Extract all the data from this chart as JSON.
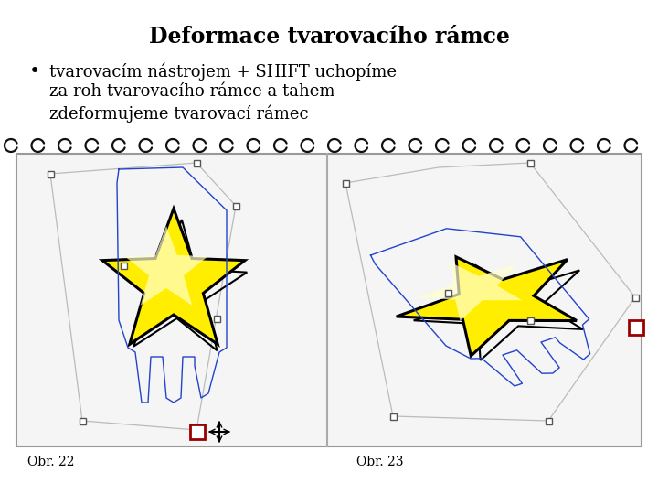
{
  "title": "Deformace tvarovacího rámce",
  "bullet_line1": "tvarovacím nástrojem + SHIFT uchopíme",
  "bullet_line2": "za roh tvarovacího rámce a tahem",
  "bullet_line3": "zdeformujeme tvarovací rámec",
  "label1": "Obr. 22",
  "label2": "Obr. 23",
  "bg_color": "#ffffff",
  "notebook_bg": "#f5f5f5",
  "spiral_color": "#111111",
  "gray_line": "#bbbbbb",
  "blue_outline": "#2244cc",
  "red_box": "#990000",
  "star_yellow": "#ffee00",
  "star_light": "#ffffaa",
  "black": "#000000",
  "divider": "#aaaaaa",
  "handle_edge": "#555555"
}
